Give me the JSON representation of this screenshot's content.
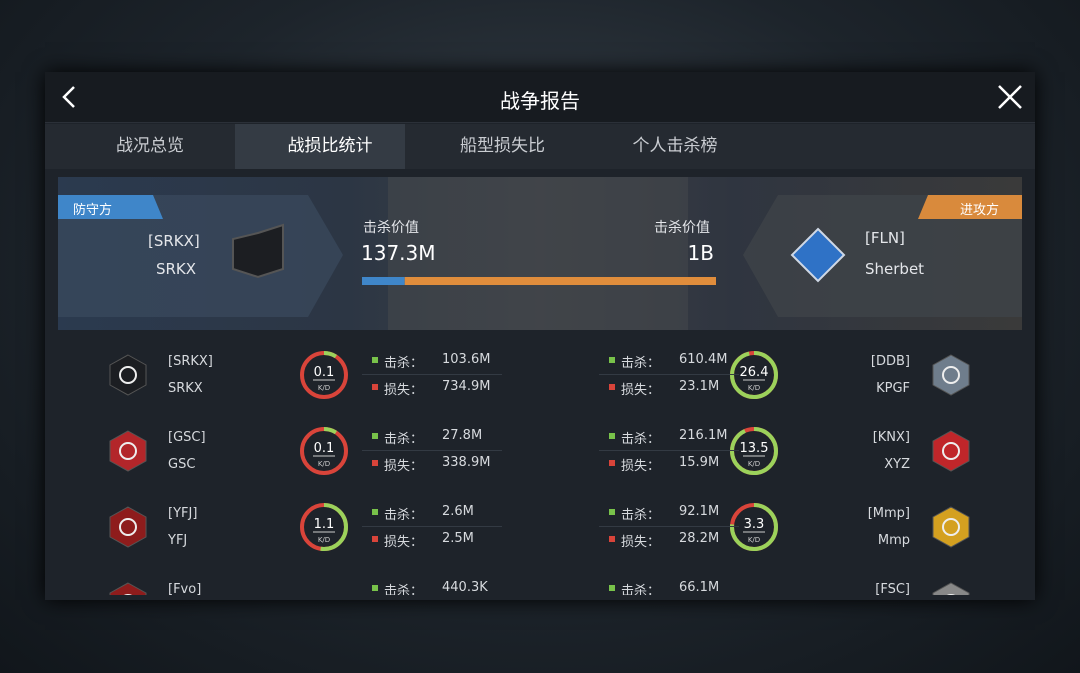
{
  "header": {
    "title": "战争报告"
  },
  "tabs": [
    "战况总览",
    "战损比统计",
    "船型损失比",
    "个人击杀榜"
  ],
  "active_tab": 1,
  "summary": {
    "defender": {
      "role": "防守方",
      "tag": "[SRKX]",
      "name": "SRKX",
      "kill_value_label": "击杀价值",
      "kill_value": {
        "value": 137300000,
        "label": "137.3M"
      }
    },
    "attacker": {
      "role": "进攻方",
      "tag": "[FLN]",
      "name": "Sherbet",
      "kill_value_label": "击杀价值",
      "kill_value": {
        "value": 1000000000,
        "label": "1B"
      }
    }
  },
  "labels": {
    "kill": "击杀：",
    "loss": "损失：",
    "kd": "K/D"
  },
  "defenders": [
    {
      "tag": "[SRKX]",
      "name": "SRKX",
      "kd": 0.1,
      "kill": "103.6M",
      "loss": "734.9M"
    },
    {
      "tag": "[GSC]",
      "name": "GSC",
      "kd": 0.1,
      "kill": "27.8M",
      "loss": "338.9M"
    },
    {
      "tag": "[YFJ]",
      "name": "YFJ",
      "kd": 1.1,
      "kill": "2.6M",
      "loss": "2.5M"
    },
    {
      "tag": "[Fvo]",
      "kill": "440.3K"
    }
  ],
  "attackers": [
    {
      "tag": "[DDB]",
      "name": "KPGF",
      "kd": 26.4,
      "kill": "610.4M",
      "loss": "23.1M"
    },
    {
      "tag": "[KNX]",
      "name": "XYZ",
      "kd": 13.5,
      "kill": "216.1M",
      "loss": "15.9M"
    },
    {
      "tag": "[Mmp]",
      "name": "Mmp",
      "kd": 3.3,
      "kill": "92.1M",
      "loss": "28.2M"
    },
    {
      "tag": "[FSC]",
      "kill": "66.1M"
    }
  ]
}
